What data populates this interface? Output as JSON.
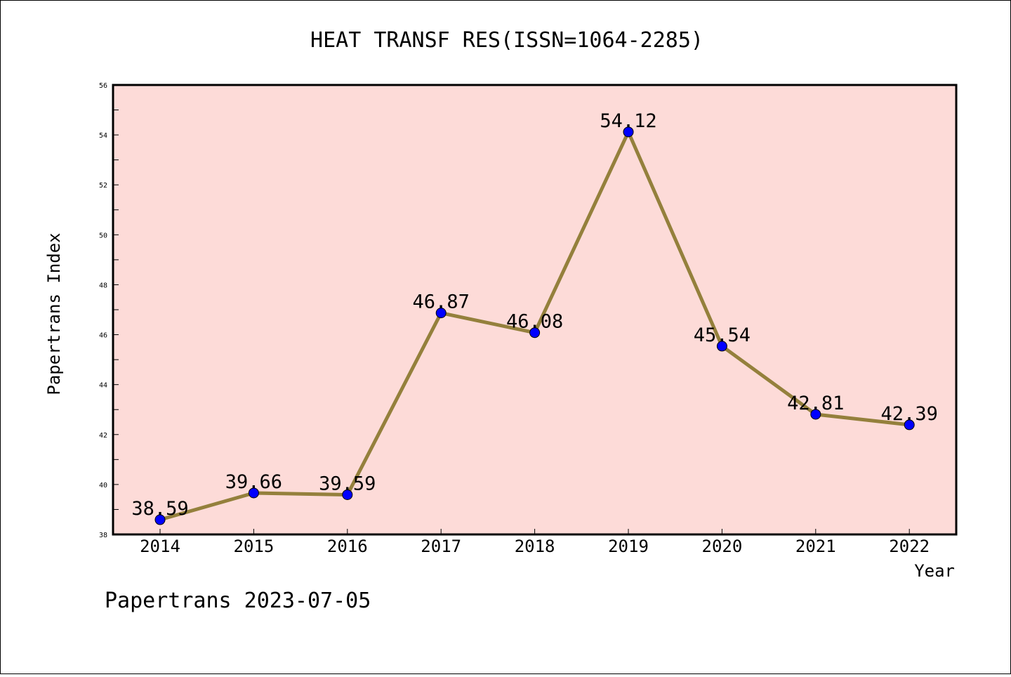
{
  "chart_data": {
    "type": "line",
    "title": "HEAT TRANSF RES(ISSN=1064-2285)",
    "xlabel": "Year",
    "ylabel": "Papertrans Index",
    "categories": [
      "2014",
      "2015",
      "2016",
      "2017",
      "2018",
      "2019",
      "2020",
      "2021",
      "2022"
    ],
    "values": [
      38.59,
      39.66,
      39.59,
      46.87,
      46.08,
      54.12,
      45.54,
      42.81,
      42.39
    ],
    "data_labels": [
      "38.59",
      "39.66",
      "39.59",
      "46.87",
      "46.08",
      "54.12",
      "45.54",
      "42.81",
      "42.39"
    ],
    "yticks": [
      "38",
      "40",
      "42",
      "44",
      "46",
      "48",
      "50",
      "52",
      "54",
      "56"
    ],
    "ylim": [
      38,
      56
    ],
    "grid": false,
    "colors": {
      "plot_background": "#fddbd8",
      "line": "#94803c",
      "marker": "#0000ff"
    }
  },
  "footer": "Papertrans 2023-07-05"
}
